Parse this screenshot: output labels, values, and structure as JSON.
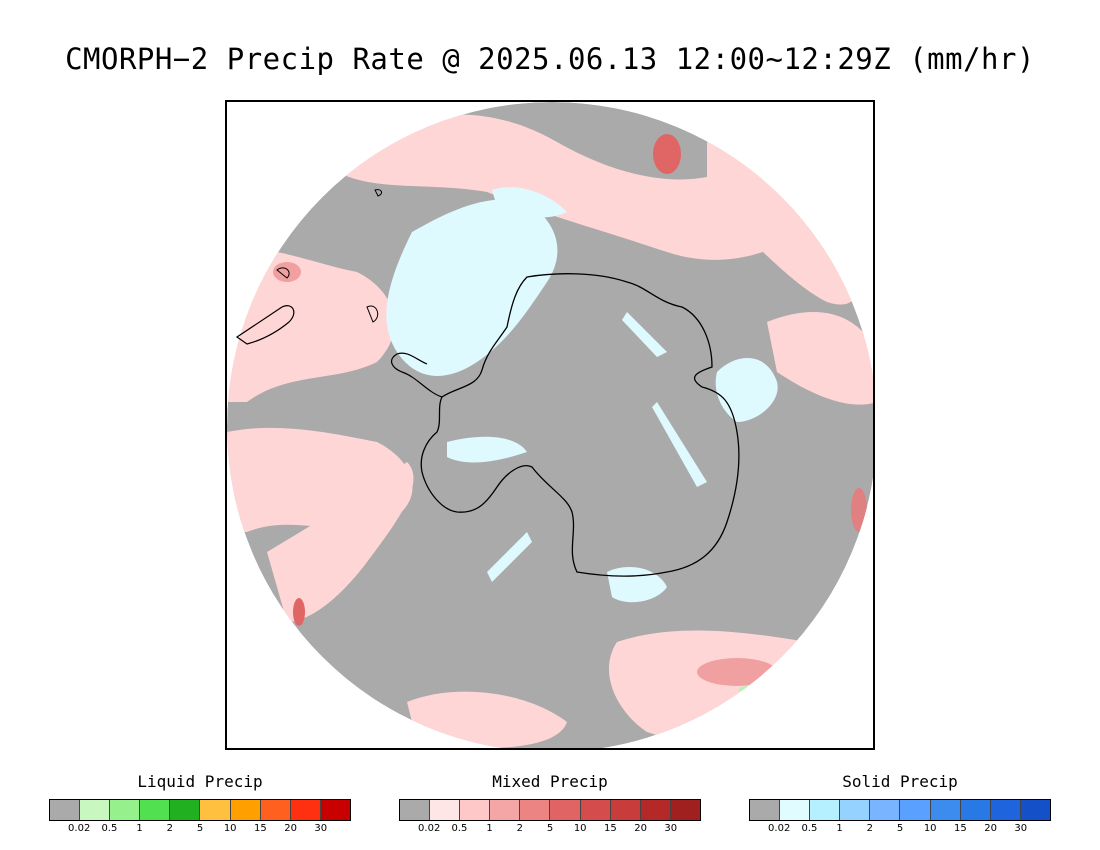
{
  "title": "CMORPH−2 Precip Rate @ 2025.06.13 12:00~12:29Z (mm/hr)",
  "map": {
    "projection": "south-polar-stereographic",
    "background_color": "#aaaaaa",
    "coastline_color": "#000000",
    "mixed_light_color": "#ffd6d6",
    "mixed_mid_color": "#f0a0a0",
    "mixed_heavy_color": "#e06666",
    "solid_light_color": "#dffaff",
    "liquid_light_color": "#b3f5b0"
  },
  "legends": [
    {
      "title": "Liquid Precip",
      "colors": [
        "#aaaaaa",
        "#c8f7c0",
        "#96f08c",
        "#50e050",
        "#20b020",
        "#ffc040",
        "#ffa000",
        "#ff6020",
        "#ff3010",
        "#c80000"
      ],
      "labels": [
        "0.02",
        "0.5",
        "1",
        "2",
        "5",
        "10",
        "15",
        "20",
        "30"
      ]
    },
    {
      "title": "Mixed Precip",
      "colors": [
        "#aaaaaa",
        "#ffe6e6",
        "#ffc8c8",
        "#f4a6a6",
        "#ec8484",
        "#e06464",
        "#d44c4c",
        "#c83c3c",
        "#b42828",
        "#a02020"
      ],
      "labels": [
        "0.02",
        "0.5",
        "1",
        "2",
        "5",
        "10",
        "15",
        "20",
        "30"
      ]
    },
    {
      "title": "Solid Precip",
      "colors": [
        "#aaaaaa",
        "#e0fcff",
        "#b4f0ff",
        "#96d2ff",
        "#78b4ff",
        "#5aa0ff",
        "#3c8cf0",
        "#2878e6",
        "#1e64dc",
        "#1450c8"
      ],
      "labels": [
        "0.02",
        "0.5",
        "1",
        "2",
        "5",
        "10",
        "15",
        "20",
        "30"
      ]
    }
  ]
}
